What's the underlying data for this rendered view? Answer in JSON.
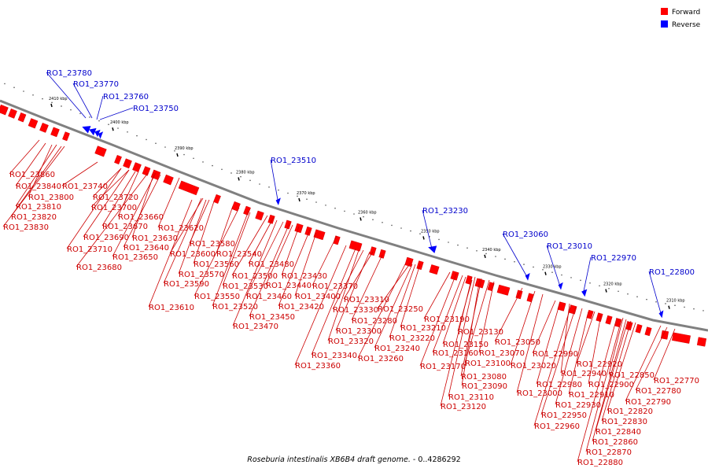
{
  "legend": {
    "forward_label": "Forward",
    "reverse_label": "Reverse",
    "forward_color": "#ff0000",
    "reverse_color": "#0000ff"
  },
  "caption": {
    "organism": "Roseburia intestinalis XB6B4 draft genome.",
    "range": " - 0..4286292"
  },
  "colors": {
    "backbone": "#808080",
    "tick": "#000000",
    "label_forward": "#cc0000",
    "label_reverse": "#0000cc"
  },
  "ticks_kbp": [
    "2410 kbp",
    "2400 kbp",
    "2390 kbp",
    "2380 kbp",
    "2370 kbp",
    "2360 kbp",
    "2350 kbp",
    "2340 kbp",
    "2330 kbp",
    "2320 kbp",
    "2310 kbp"
  ],
  "reverse_genes": [
    "RO1_23780",
    "RO1_23770",
    "RO1_23760",
    "RO1_23750",
    "RO1_23510",
    "RO1_23230",
    "RO1_23060",
    "RO1_23010",
    "RO1_22970",
    "RO1_22800"
  ],
  "forward_genes": [
    "RO1_23860",
    "RO1_23840",
    "RO1_23800",
    "RO1_23810",
    "RO1_23820",
    "RO1_23830",
    "RO1_23740",
    "RO1_23720",
    "RO1_23700",
    "RO1_23660",
    "RO1_23670",
    "RO1_23690",
    "RO1_23710",
    "RO1_23680",
    "RO1_23630",
    "RO1_23640",
    "RO1_23650",
    "RO1_23620",
    "RO1_23580",
    "RO1_23600",
    "RO1_23540",
    "RO1_23560",
    "RO1_23570",
    "RO1_23590",
    "RO1_23530",
    "RO1_23610",
    "RO1_23500",
    "RO1_23480",
    "RO1_23550",
    "RO1_23520",
    "RO1_23440",
    "RO1_23460",
    "RO1_23450",
    "RO1_23470",
    "RO1_23430",
    "RO1_23400",
    "RO1_23420",
    "RO1_23370",
    "RO1_23310",
    "RO1_23330",
    "RO1_23280",
    "RO1_23300",
    "RO1_23320",
    "RO1_23340",
    "RO1_23360",
    "RO1_23250",
    "RO1_23210",
    "RO1_23220",
    "RO1_23240",
    "RO1_23260",
    "RO1_23190",
    "RO1_23130",
    "RO1_23150",
    "RO1_23160",
    "RO1_23170",
    "RO1_23070",
    "RO1_23100",
    "RO1_23080",
    "RO1_23090",
    "RO1_23110",
    "RO1_23120",
    "RO1_23050",
    "RO1_23020",
    "RO1_23000",
    "RO1_22990",
    "RO1_22940",
    "RO1_22980",
    "RO1_22930",
    "RO1_22950",
    "RO1_22960",
    "RO1_22920",
    "RO1_22900",
    "RO1_22910",
    "RO1_22850",
    "RO1_22820",
    "RO1_22830",
    "RO1_22840",
    "RO1_22860",
    "RO1_22870",
    "RO1_22880",
    "RO1_22770",
    "RO1_22780",
    "RO1_22790"
  ]
}
